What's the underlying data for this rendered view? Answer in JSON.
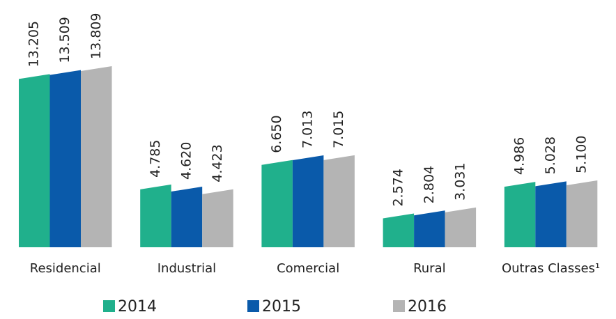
{
  "chart_data": {
    "type": "bar",
    "categories": [
      "Residencial",
      "Industrial",
      "Comercial",
      "Rural",
      "Outras Classes¹"
    ],
    "series": [
      {
        "name": "2014",
        "color": "#20b08c",
        "values": [
          13205,
          4785,
          6650,
          2574,
          4986
        ],
        "value_labels": [
          "13.205",
          "4.785",
          "6.650",
          "2.574",
          "4.986"
        ]
      },
      {
        "name": "2015",
        "color": "#0a5aaa",
        "values": [
          13509,
          4620,
          7013,
          2804,
          5028
        ],
        "value_labels": [
          "13.509",
          "4.620",
          "7.013",
          "2.804",
          "5.028"
        ]
      },
      {
        "name": "2016",
        "color": "#b4b4b4",
        "values": [
          13809,
          4423,
          7015,
          3031,
          5100
        ],
        "value_labels": [
          "13.809",
          "4.423",
          "7.015",
          "3.031",
          "5.100"
        ]
      }
    ],
    "legend": "bottom"
  }
}
